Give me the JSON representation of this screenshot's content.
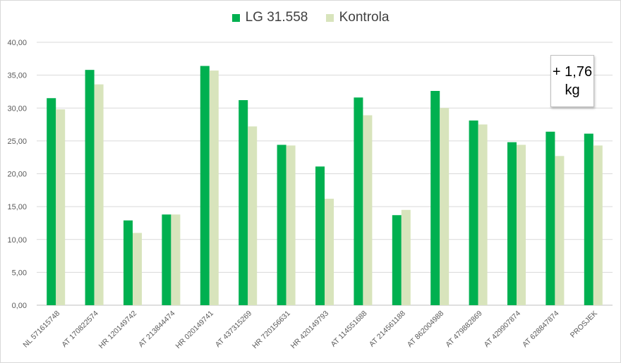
{
  "chart_data": {
    "type": "bar",
    "categories": [
      "NL 571615748",
      "AT 170822574",
      "HR 120149742",
      "AT 213844474",
      "HR 020149741",
      "AT 437315269",
      "HR 720156631",
      "HR 420149793",
      "AT 114551688",
      "AT 214561188",
      "AT 862004988",
      "AT 479882869",
      "AT 429907874",
      "AT 628847874",
      "PROSJEK"
    ],
    "series": [
      {
        "name": "LG 31.558",
        "color": "#00b050",
        "values": [
          31.5,
          35.8,
          12.9,
          13.8,
          36.4,
          31.2,
          24.4,
          21.1,
          31.6,
          13.7,
          32.6,
          28.1,
          24.8,
          26.4,
          26.1
        ]
      },
      {
        "name": "Kontrola",
        "color": "#d8e4bc",
        "values": [
          29.8,
          33.6,
          11.0,
          13.8,
          35.7,
          27.2,
          24.3,
          16.2,
          28.9,
          14.5,
          30.0,
          27.5,
          24.4,
          22.7,
          24.3
        ]
      }
    ],
    "ylim": [
      0,
      40
    ],
    "yticks": [
      "0,00",
      "5,00",
      "10,00",
      "15,00",
      "20,00",
      "25,00",
      "30,00",
      "35,00",
      "40,00"
    ],
    "grid": true,
    "legend_position": "top",
    "annotation": {
      "line1": "+ 1,76",
      "line2": "kg"
    }
  }
}
